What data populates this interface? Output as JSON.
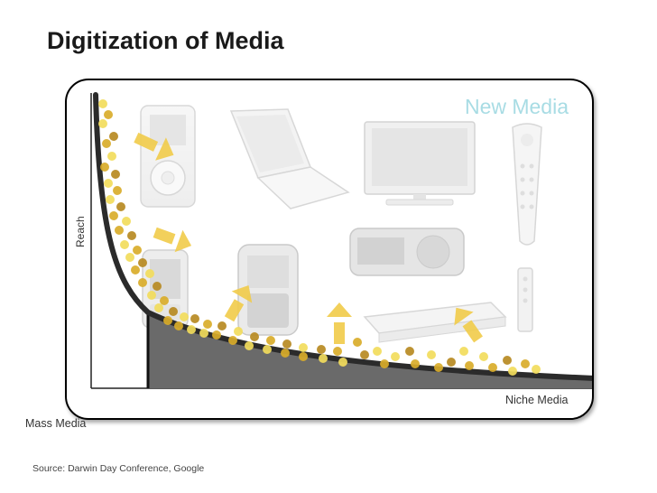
{
  "slide": {
    "title": "Digitization of Media",
    "source": "Source: Darwin Day Conference, Google"
  },
  "diagram": {
    "overlay_label": "New Media",
    "y_axis_label": "Reach",
    "x_axis_left_label": "Mass Media",
    "x_axis_right_label": "Niche Media"
  },
  "colors": {
    "dot_light": "#f2dc5c",
    "dot_gold": "#d9ad2a",
    "dot_dark": "#b78a22",
    "arrow": "#f1cc4a",
    "curve": "#2b2b2b",
    "area_fill": "#6a6a6a",
    "new_media_text": "#a8dce4"
  },
  "icons": [
    "ipod-icon",
    "laptop-icon",
    "flat-tv-icon",
    "tivo-remote-icon",
    "flip-phone-icon",
    "blackberry-icon",
    "satellite-radio-icon",
    "dvd-player-icon",
    "remote-control-icon"
  ]
}
